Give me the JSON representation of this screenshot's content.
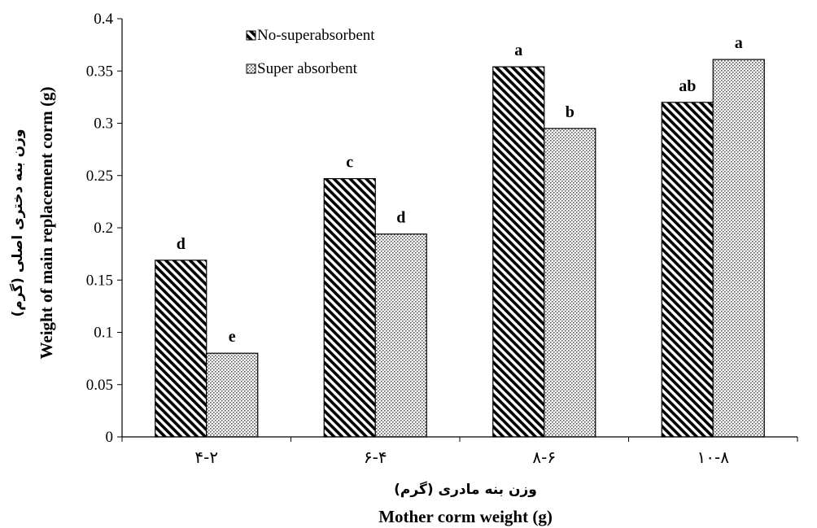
{
  "chart_data": {
    "type": "bar",
    "categories": [
      "۴-۲",
      "۶-۴",
      "۸-۶",
      "۱۰-۸"
    ],
    "series": [
      {
        "name": "No-superabsorbent",
        "values": [
          0.169,
          0.247,
          0.354,
          0.32
        ],
        "letters": [
          "d",
          "c",
          "a",
          "ab"
        ],
        "pattern": "diagonal-hatch"
      },
      {
        "name": "Super absorbent",
        "values": [
          0.08,
          0.194,
          0.295,
          0.361
        ],
        "letters": [
          "e",
          "d",
          "b",
          "a"
        ],
        "pattern": "dots"
      }
    ],
    "xlabel": "Mother corm weight (g)",
    "xlabel_fa": "وزن بنه مادری (گرم)",
    "ylabel": "Weight of main replacement corm (g)",
    "ylabel_fa": "وزن بنه دختری اصلی (گرم)",
    "ylim": [
      0,
      0.4
    ],
    "yticks": [
      "0",
      "0.05",
      "0.1",
      "0.15",
      "0.2",
      "0.25",
      "0.3",
      "0.35",
      "0.4"
    ],
    "grid": false,
    "legend_position": "top-left"
  }
}
